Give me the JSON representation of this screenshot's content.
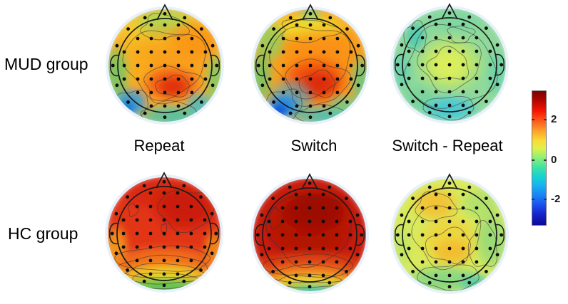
{
  "figure": {
    "background": "#ffffff",
    "row_labels": {
      "mud": "MUD group",
      "hc": "HC group"
    },
    "column_labels": {
      "repeat": "Repeat",
      "switch": "Switch",
      "diff": "Switch - Repeat"
    }
  },
  "colorbar": {
    "colormap": "jet",
    "gradient_top_to_bottom": [
      "#7a0300 0%",
      "#b30500 7%",
      "#f81500 15%",
      "#fd6020 23%",
      "#fda429 30%",
      "#f8dc37 37%",
      "#ddf14c 43%",
      "#8aef79 50%",
      "#3ee3a4 57%",
      "#15d2d2 64%",
      "#18b4f0 70%",
      "#1982f4 78%",
      "#1c50f0 85%",
      "#1423c8 92%",
      "#0b0b96 100%"
    ],
    "ticks": [
      {
        "label": "2",
        "value": 2,
        "pos": 0.216
      },
      {
        "label": "0",
        "value": 0,
        "pos": 0.515
      },
      {
        "label": "-2",
        "value": -2,
        "pos": 0.805
      }
    ],
    "value_range_estimate": [
      -3.4,
      3.4
    ],
    "border_color": "#777777"
  },
  "chart_data": {
    "type": "heatmap",
    "subtype": "eeg_scalp_topography",
    "rows": [
      "MUD group",
      "HC group"
    ],
    "columns": [
      "Repeat",
      "Switch",
      "Switch - Repeat"
    ],
    "colormap": "jet",
    "colorbar_ticks": [
      2,
      0,
      -2
    ],
    "value_range_estimate": [
      -3.4,
      3.4
    ],
    "panels": [
      {
        "row": "MUD group",
        "column": "Repeat",
        "description": "Warm orange scalp map with red centro-parietal hotspot (~+2.5), yellow-green frontal midline, green temporal rims, cyan-blue left occipital corner and cyan occipital rim (~-1 to -2).",
        "base": "#f7ad2a",
        "blobs": [
          {
            "x": 0.0,
            "y": -0.6,
            "rx": 0.75,
            "ry": 0.3,
            "c": "#f2e12e",
            "a": 0.85
          },
          {
            "x": -0.02,
            "y": -0.74,
            "rx": 0.42,
            "ry": 0.24,
            "c": "#9edd62",
            "a": 0.9
          },
          {
            "x": 0.5,
            "y": -0.45,
            "rx": 0.4,
            "ry": 0.3,
            "c": "#fb8c12",
            "a": 0.9
          },
          {
            "x": -0.55,
            "y": -0.05,
            "rx": 0.3,
            "ry": 0.35,
            "c": "#f3d829",
            "a": 0.7
          },
          {
            "x": 0.0,
            "y": 0.0,
            "rx": 0.75,
            "ry": 0.65,
            "c": "#fa9a18",
            "a": 0.75
          },
          {
            "x": 0.12,
            "y": 0.33,
            "rx": 0.42,
            "ry": 0.26,
            "c": "#ef4e15",
            "a": 0.95
          },
          {
            "x": 0.15,
            "y": 0.38,
            "rx": 0.24,
            "ry": 0.15,
            "c": "#dd2e08",
            "a": 0.95
          },
          {
            "x": -0.86,
            "y": 0.18,
            "rx": 0.2,
            "ry": 0.45,
            "c": "#63c96e",
            "a": 0.85
          },
          {
            "x": -0.6,
            "y": 0.66,
            "rx": 0.26,
            "ry": 0.22,
            "c": "#2a9de4",
            "a": 0.95
          },
          {
            "x": -0.68,
            "y": 0.76,
            "rx": 0.14,
            "ry": 0.12,
            "c": "#1173d8",
            "a": 0.95
          },
          {
            "x": 0.15,
            "y": 0.9,
            "rx": 0.55,
            "ry": 0.18,
            "c": "#43c5b0",
            "a": 0.9
          },
          {
            "x": 0.62,
            "y": 0.68,
            "rx": 0.22,
            "ry": 0.18,
            "c": "#3fbcd0",
            "a": 0.85
          },
          {
            "x": 0.9,
            "y": 0.25,
            "rx": 0.16,
            "ry": 0.4,
            "c": "#6fcf6f",
            "a": 0.8
          }
        ],
        "contours": [
          {
            "x": 0.0,
            "y": -0.05,
            "rx": 0.72,
            "ry": 0.6,
            "seed": 3,
            "w": 0.1
          },
          {
            "x": 0.12,
            "y": 0.34,
            "rx": 0.5,
            "ry": 0.32,
            "seed": 2,
            "w": 0.12
          },
          {
            "x": 0.15,
            "y": 0.37,
            "rx": 0.3,
            "ry": 0.18,
            "seed": 5,
            "w": 0.12
          },
          {
            "x": -0.02,
            "y": -0.68,
            "rx": 0.4,
            "ry": 0.22,
            "seed": 7,
            "w": 0.15
          },
          {
            "x": -0.58,
            "y": 0.68,
            "rx": 0.3,
            "ry": 0.24,
            "seed": 4,
            "w": 0.12
          },
          {
            "x": 0.1,
            "y": 0.85,
            "rx": 0.5,
            "ry": 0.2,
            "seed": 6,
            "w": 0.1
          }
        ]
      },
      {
        "row": "MUD group",
        "column": "Switch",
        "description": "Orange map with large intense red centro-parietal blob (~+2.5 to +3), yellow frontal band, teal patch at nose, strong blue left occipital blob, cyan occipital rim, green temporal edges.",
        "base": "#f7a01e",
        "blobs": [
          {
            "x": 0.0,
            "y": -0.88,
            "rx": 0.18,
            "ry": 0.12,
            "c": "#4cc9a8",
            "a": 0.9
          },
          {
            "x": -0.05,
            "y": -0.68,
            "rx": 0.6,
            "ry": 0.22,
            "c": "#f0e330",
            "a": 0.9
          },
          {
            "x": -0.72,
            "y": -0.42,
            "rx": 0.25,
            "ry": 0.3,
            "c": "#8ad464",
            "a": 0.85
          },
          {
            "x": 0.15,
            "y": -0.15,
            "rx": 0.6,
            "ry": 0.45,
            "c": "#fb8a10",
            "a": 0.8
          },
          {
            "x": 0.08,
            "y": 0.28,
            "rx": 0.5,
            "ry": 0.35,
            "c": "#ee3e0c",
            "a": 0.9
          },
          {
            "x": 0.15,
            "y": 0.33,
            "rx": 0.3,
            "ry": 0.2,
            "c": "#d92605",
            "a": 0.9
          },
          {
            "x": -0.35,
            "y": 0.6,
            "rx": 0.35,
            "ry": 0.3,
            "c": "#3fb9dc",
            "a": 0.7
          },
          {
            "x": -0.48,
            "y": 0.72,
            "rx": 0.25,
            "ry": 0.2,
            "c": "#1c86e8",
            "a": 0.95
          },
          {
            "x": -0.55,
            "y": 0.8,
            "rx": 0.13,
            "ry": 0.11,
            "c": "#0c52d8",
            "a": 0.95
          },
          {
            "x": 0.25,
            "y": 0.9,
            "rx": 0.5,
            "ry": 0.16,
            "c": "#41c4c0",
            "a": 0.9
          },
          {
            "x": -0.88,
            "y": 0.2,
            "rx": 0.18,
            "ry": 0.4,
            "c": "#66ca70",
            "a": 0.85
          },
          {
            "x": 0.9,
            "y": 0.3,
            "rx": 0.16,
            "ry": 0.42,
            "c": "#5fcb87",
            "a": 0.85
          },
          {
            "x": 0.6,
            "y": 0.72,
            "rx": 0.25,
            "ry": 0.18,
            "c": "#63cf9a",
            "a": 0.8
          }
        ],
        "contours": [
          {
            "x": 0.0,
            "y": -0.1,
            "rx": 0.7,
            "ry": 0.62,
            "seed": 3,
            "w": 0.1
          },
          {
            "x": 0.1,
            "y": 0.3,
            "rx": 0.55,
            "ry": 0.4,
            "seed": 2,
            "w": 0.12
          },
          {
            "x": 0.14,
            "y": 0.33,
            "rx": 0.32,
            "ry": 0.22,
            "seed": 5,
            "w": 0.14
          },
          {
            "x": -0.05,
            "y": -0.62,
            "rx": 0.5,
            "ry": 0.2,
            "seed": 8,
            "w": 0.15
          },
          {
            "x": -0.45,
            "y": 0.68,
            "rx": 0.32,
            "ry": 0.26,
            "seed": 4,
            "w": 0.12
          },
          {
            "x": 0.2,
            "y": 0.87,
            "rx": 0.45,
            "ry": 0.16,
            "seed": 6,
            "w": 0.1
          }
        ]
      },
      {
        "row": "MUD group",
        "column": "Switch - Repeat",
        "description": "Near-zero difference map: light green overall with a mild yellow-green central patch (~+0.5), small teal left-frontal oval, cyan occipital band (~-0.5 to -1).",
        "base": "#8ed99b",
        "blobs": [
          {
            "x": 0.1,
            "y": -0.8,
            "rx": 0.5,
            "ry": 0.2,
            "c": "#7dd6a2",
            "a": 0.8
          },
          {
            "x": -0.6,
            "y": -0.5,
            "rx": 0.16,
            "ry": 0.22,
            "c": "#44c8b4",
            "a": 0.85
          },
          {
            "x": 0.0,
            "y": -0.02,
            "rx": 0.5,
            "ry": 0.42,
            "c": "#cfe95c",
            "a": 0.9
          },
          {
            "x": -0.02,
            "y": 0.0,
            "rx": 0.3,
            "ry": 0.25,
            "c": "#dff05a",
            "a": 0.9
          },
          {
            "x": -0.55,
            "y": 0.6,
            "rx": 0.25,
            "ry": 0.2,
            "c": "#6fd19a",
            "a": 0.7
          },
          {
            "x": 0.0,
            "y": 0.78,
            "rx": 0.42,
            "ry": 0.2,
            "c": "#3ec6de",
            "a": 0.9
          },
          {
            "x": 0.85,
            "y": 0.15,
            "rx": 0.15,
            "ry": 0.35,
            "c": "#5ccfae",
            "a": 0.7
          },
          {
            "x": -0.85,
            "y": 0.1,
            "rx": 0.15,
            "ry": 0.3,
            "c": "#59ceb4",
            "a": 0.7
          }
        ],
        "contours": [
          {
            "x": 0.0,
            "y": 0.05,
            "rx": 0.8,
            "ry": 0.73,
            "seed": 7,
            "w": 0.08
          },
          {
            "x": 0.0,
            "y": -0.02,
            "rx": 0.55,
            "ry": 0.45,
            "seed": 3,
            "w": 0.12
          },
          {
            "x": -0.02,
            "y": 0.0,
            "rx": 0.36,
            "ry": 0.28,
            "seed": 6,
            "w": 0.14
          },
          {
            "x": 0.2,
            "y": -0.55,
            "rx": 0.22,
            "ry": 0.15,
            "seed": 9,
            "w": 0.15
          },
          {
            "x": 0.0,
            "y": 0.76,
            "rx": 0.45,
            "ry": 0.2,
            "seed": 4,
            "w": 0.1
          },
          {
            "x": -0.6,
            "y": -0.5,
            "rx": 0.2,
            "ry": 0.26,
            "seed": 5,
            "w": 0.12
          }
        ]
      },
      {
        "row": "HC group",
        "column": "Repeat",
        "description": "Strong positivity: red over frontal-central scalp (~+2.5) with darker red right-frontal region, grading through orange and yellow bands to green at the occipital rim.",
        "base": "#e23419",
        "blobs": [
          {
            "x": -0.1,
            "y": -0.7,
            "rx": 0.55,
            "ry": 0.25,
            "c": "#d3250e",
            "a": 0.8
          },
          {
            "x": 0.38,
            "y": -0.45,
            "rx": 0.5,
            "ry": 0.35,
            "c": "#c51808",
            "a": 0.9
          },
          {
            "x": -0.85,
            "y": 0.25,
            "rx": 0.18,
            "ry": 0.35,
            "c": "#f6b21f",
            "a": 0.8
          },
          {
            "x": 0.88,
            "y": 0.3,
            "rx": 0.15,
            "ry": 0.3,
            "c": "#f59c18",
            "a": 0.8
          },
          {
            "x": 0.0,
            "y": 0.52,
            "rx": 0.85,
            "ry": 0.25,
            "c": "#f4811c",
            "a": 0.9
          },
          {
            "x": 0.0,
            "y": 0.76,
            "rx": 0.8,
            "ry": 0.18,
            "c": "#f2e42c",
            "a": 0.9
          },
          {
            "x": 0.0,
            "y": 0.95,
            "rx": 0.65,
            "ry": 0.15,
            "c": "#55cc55",
            "a": 0.95
          }
        ],
        "contours": [
          {
            "x": 0.4,
            "y": -0.42,
            "rx": 0.5,
            "ry": 0.36,
            "seed": 3,
            "w": 0.1
          },
          {
            "x": -0.55,
            "y": -0.42,
            "rx": 0.09,
            "ry": 0.11,
            "seed": 2,
            "w": 0.15
          },
          {
            "x": 0.0,
            "y": -0.08,
            "rx": 0.05,
            "ry": 0.1,
            "seed": 4,
            "w": 0.15
          },
          {
            "x": 0.0,
            "y": 0.45,
            "rx": 0.85,
            "ry": 0.22,
            "seed": 5,
            "w": 0.07
          },
          {
            "x": 0.0,
            "y": 0.6,
            "rx": 0.8,
            "ry": 0.2,
            "seed": 6,
            "w": 0.07
          },
          {
            "x": 0.0,
            "y": 0.72,
            "rx": 0.72,
            "ry": 0.18,
            "seed": 7,
            "w": 0.07
          },
          {
            "x": 0.0,
            "y": 0.84,
            "rx": 0.62,
            "ry": 0.14,
            "seed": 8,
            "w": 0.07
          }
        ]
      },
      {
        "row": "HC group",
        "column": "Switch",
        "description": "Strongest positivity: dark red over nearly the whole scalp (~+3), narrow orange-yellow-green bands at the occipital rim with a hint of cyan at the lowest edge.",
        "base": "#c91d09",
        "blobs": [
          {
            "x": 0.0,
            "y": -0.15,
            "rx": 0.7,
            "ry": 0.55,
            "c": "#a80e03",
            "a": 0.85
          },
          {
            "x": 0.1,
            "y": -0.45,
            "rx": 0.5,
            "ry": 0.3,
            "c": "#930801",
            "a": 0.8
          },
          {
            "x": 0.0,
            "y": 0.55,
            "rx": 0.85,
            "ry": 0.22,
            "c": "#e8541a",
            "a": 0.85
          },
          {
            "x": 0.0,
            "y": 0.72,
            "rx": 0.8,
            "ry": 0.16,
            "c": "#f59324",
            "a": 0.9
          },
          {
            "x": 0.0,
            "y": 0.85,
            "rx": 0.7,
            "ry": 0.13,
            "c": "#f0e42e",
            "a": 0.9
          },
          {
            "x": 0.05,
            "y": 0.97,
            "rx": 0.55,
            "ry": 0.1,
            "c": "#59cd7d",
            "a": 0.9
          },
          {
            "x": 0.1,
            "y": 1.02,
            "rx": 0.3,
            "ry": 0.08,
            "c": "#49c8c0",
            "a": 0.9
          }
        ],
        "contours": [
          {
            "x": 0.0,
            "y": -0.1,
            "rx": 0.75,
            "ry": 0.62,
            "seed": 3,
            "w": 0.08
          },
          {
            "x": -0.6,
            "y": -0.3,
            "rx": 0.12,
            "ry": 0.18,
            "seed": 2,
            "w": 0.15
          },
          {
            "x": 0.0,
            "y": 0.55,
            "rx": 0.8,
            "ry": 0.2,
            "seed": 5,
            "w": 0.07
          },
          {
            "x": 0.0,
            "y": 0.7,
            "rx": 0.7,
            "ry": 0.16,
            "seed": 6,
            "w": 0.07
          },
          {
            "x": 0.0,
            "y": 0.82,
            "rx": 0.6,
            "ry": 0.12,
            "seed": 7,
            "w": 0.07
          }
        ]
      },
      {
        "row": "HC group",
        "column": "Switch - Repeat",
        "description": "Mild positive difference: yellow-green map with warm yellow-orange left-frontal and central regions (~+1), green right hemisphere and occipital area, teal at lower-right rim.",
        "base": "#d9e95c",
        "blobs": [
          {
            "x": -0.25,
            "y": -0.55,
            "rx": 0.35,
            "ry": 0.25,
            "c": "#f6bc2d",
            "a": 0.9
          },
          {
            "x": 0.55,
            "y": -0.55,
            "rx": 0.3,
            "ry": 0.25,
            "c": "#a5df72",
            "a": 0.8
          },
          {
            "x": 0.0,
            "y": 0.1,
            "rx": 0.45,
            "ry": 0.4,
            "c": "#f3cf35",
            "a": 0.85
          },
          {
            "x": 0.05,
            "y": 0.3,
            "rx": 0.3,
            "ry": 0.2,
            "c": "#f4b62a",
            "a": 0.8
          },
          {
            "x": 0.75,
            "y": 0.1,
            "rx": 0.25,
            "ry": 0.45,
            "c": "#8cd87c",
            "a": 0.85
          },
          {
            "x": -0.85,
            "y": 0.2,
            "rx": 0.15,
            "ry": 0.35,
            "c": "#b7e36a",
            "a": 0.7
          },
          {
            "x": -0.1,
            "y": 0.8,
            "rx": 0.6,
            "ry": 0.22,
            "c": "#77d389",
            "a": 0.85
          },
          {
            "x": 0.45,
            "y": 0.85,
            "rx": 0.25,
            "ry": 0.15,
            "c": "#4fc9ae",
            "a": 0.85
          }
        ],
        "contours": [
          {
            "x": -0.05,
            "y": 0.0,
            "rx": 0.6,
            "ry": 0.55,
            "seed": 3,
            "w": 0.1
          },
          {
            "x": 0.0,
            "y": 0.2,
            "rx": 0.4,
            "ry": 0.3,
            "seed": 5,
            "w": 0.13
          },
          {
            "x": -0.25,
            "y": -0.5,
            "rx": 0.35,
            "ry": 0.25,
            "seed": 7,
            "w": 0.12
          },
          {
            "x": 0.0,
            "y": 0.75,
            "rx": 0.55,
            "ry": 0.22,
            "seed": 4,
            "w": 0.1
          },
          {
            "x": 0.6,
            "y": 0.2,
            "rx": 0.25,
            "ry": 0.4,
            "seed": 6,
            "w": 0.12
          }
        ]
      }
    ]
  }
}
